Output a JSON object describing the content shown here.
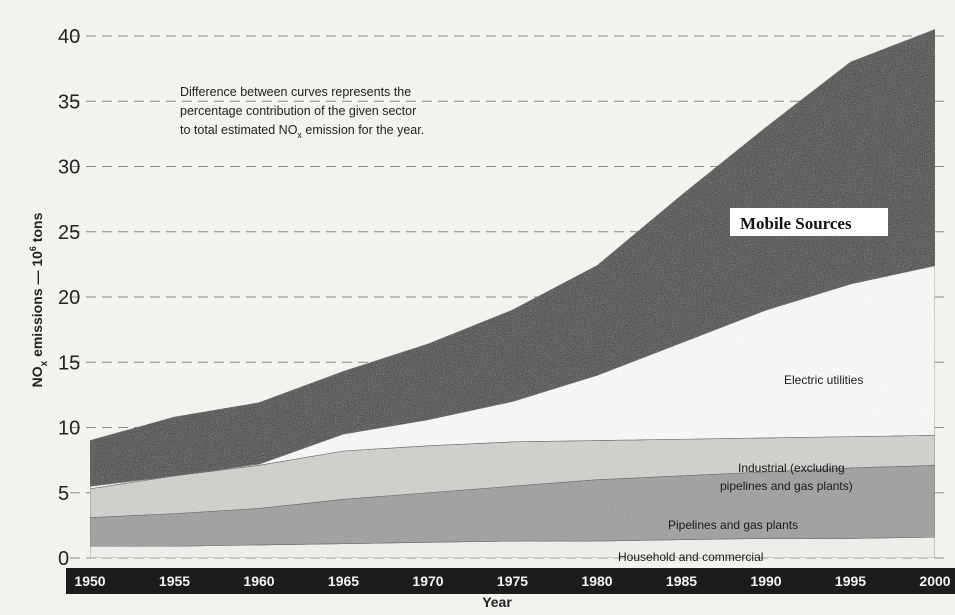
{
  "chart_data": {
    "type": "area",
    "x": [
      1950,
      1955,
      1960,
      1965,
      1970,
      1975,
      1980,
      1985,
      1990,
      1995,
      2000
    ],
    "xlabel": "Year",
    "ylabel": "NOx emissions — 10⁶ tons",
    "ylim": [
      0,
      40
    ],
    "yticks": [
      0,
      5,
      10,
      15,
      20,
      25,
      30,
      35,
      40
    ],
    "xticks": [
      1950,
      1955,
      1960,
      1965,
      1970,
      1975,
      1980,
      1985,
      1990,
      1995,
      2000
    ],
    "grid": true,
    "cumulative_series": [
      {
        "name": "Household and commercial",
        "top": [
          0.9,
          0.9,
          1.0,
          1.1,
          1.2,
          1.3,
          1.3,
          1.4,
          1.5,
          1.5,
          1.6
        ],
        "color": "#f6f6f3"
      },
      {
        "name": "Pipelines and gas plants",
        "top": [
          3.1,
          3.4,
          3.8,
          4.5,
          5.0,
          5.5,
          6.0,
          6.3,
          6.6,
          6.9,
          7.1
        ],
        "color": "#9c9c9c"
      },
      {
        "name": "Industrial (excluding pipelines and gas plants)",
        "top": [
          5.3,
          6.3,
          7.1,
          8.2,
          8.6,
          8.9,
          9.0,
          9.1,
          9.2,
          9.3,
          9.4
        ],
        "color": "#d3d3cf"
      },
      {
        "name": "Electric utilities",
        "top": [
          5.5,
          6.3,
          7.2,
          9.5,
          10.6,
          12.0,
          14.0,
          16.5,
          19.0,
          21.0,
          22.4
        ],
        "color": "#ffffff"
      },
      {
        "name": "Mobile Sources",
        "top": [
          9.0,
          10.8,
          11.9,
          14.3,
          16.4,
          19.0,
          22.4,
          27.8,
          33.0,
          38.0,
          40.5
        ],
        "color": "#3c3c3c"
      }
    ],
    "annotation": [
      "Difference between curves represents the",
      "percentage contribution of the given sector",
      "to total estimated NO",
      "x",
      " emission for the year."
    ],
    "labels": {
      "mobile": "Mobile Sources",
      "electric": "Electric utilities",
      "industrial_1": "Industrial (excluding",
      "industrial_2": "pipelines and gas plants)",
      "pipelines": "Pipelines and gas plants",
      "household": "Household and commercial"
    },
    "ylabel_parts": {
      "main": "NO",
      "sub": "x",
      "rest": " emissions — 10",
      "sup": "6",
      "end": " tons"
    }
  }
}
